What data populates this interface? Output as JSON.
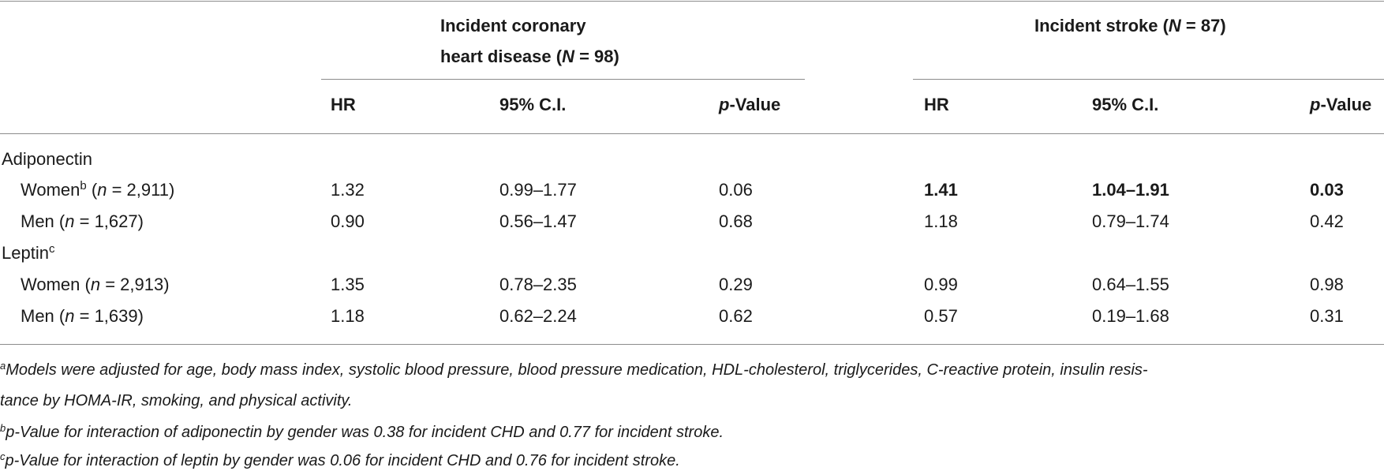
{
  "header": {
    "chd_line1": "Incident coronary",
    "chd_line2_pre": "heart disease (",
    "chd_n": "N",
    "chd_line2_post": " = 98)",
    "stroke_pre": "Incident stroke (",
    "stroke_n": "N",
    "stroke_post": " = 87)",
    "col_hr": "HR",
    "col_ci": "95% C.I.",
    "col_p_italic": "p",
    "col_p_rest": "-Value"
  },
  "groups": [
    {
      "label": "Adiponectin",
      "label_sup": "",
      "rows": [
        {
          "label_pre": "Women",
          "sup": "b",
          "label_mid": " (",
          "n_var": "n",
          "label_post": " = 2,911)",
          "chd_hr": "1.32",
          "chd_ci": "0.99–1.77",
          "chd_p": "0.06",
          "st_hr": "1.41",
          "st_ci": "1.04–1.91",
          "st_p": "0.03"
        },
        {
          "label_pre": "Men",
          "sup": "",
          "label_mid": " (",
          "n_var": "n",
          "label_post": " = 1,627)",
          "chd_hr": "0.90",
          "chd_ci": "0.56–1.47",
          "chd_p": "0.68",
          "st_hr": "1.18",
          "st_ci": "0.79–1.74",
          "st_p": "0.42"
        }
      ]
    },
    {
      "label": "Leptin",
      "label_sup": "c",
      "rows": [
        {
          "label_pre": "Women",
          "sup": "",
          "label_mid": " (",
          "n_var": "n",
          "label_post": " = 2,913)",
          "chd_hr": "1.35",
          "chd_ci": "0.78–2.35",
          "chd_p": "0.29",
          "st_hr": "0.99",
          "st_ci": "0.64–1.55",
          "st_p": "0.98"
        },
        {
          "label_pre": "Men",
          "sup": "",
          "label_mid": " (",
          "n_var": "n",
          "label_post": " = 1,639)",
          "chd_hr": "1.18",
          "chd_ci": "0.62–2.24",
          "chd_p": "0.62",
          "st_hr": "0.57",
          "st_ci": "0.19–1.68",
          "st_p": "0.31"
        }
      ]
    }
  ],
  "footnotes": {
    "a_mark": "a",
    "a_line1": "Models were adjusted for age, body mass index, systolic blood pressure, blood pressure medication, HDL-cholesterol, triglycerides, C-reactive protein, insulin resis-",
    "a_line2": "tance by HOMA-IR, smoking, and physical activity.",
    "b_mark": "b",
    "b_text": "p-Value for interaction of adiponectin by gender was 0.38 for incident CHD and 0.77 for incident stroke.",
    "c_mark": "c",
    "c_text": "p-Value for interaction of leptin by gender was 0.06 for incident CHD and 0.76 for incident stroke."
  }
}
